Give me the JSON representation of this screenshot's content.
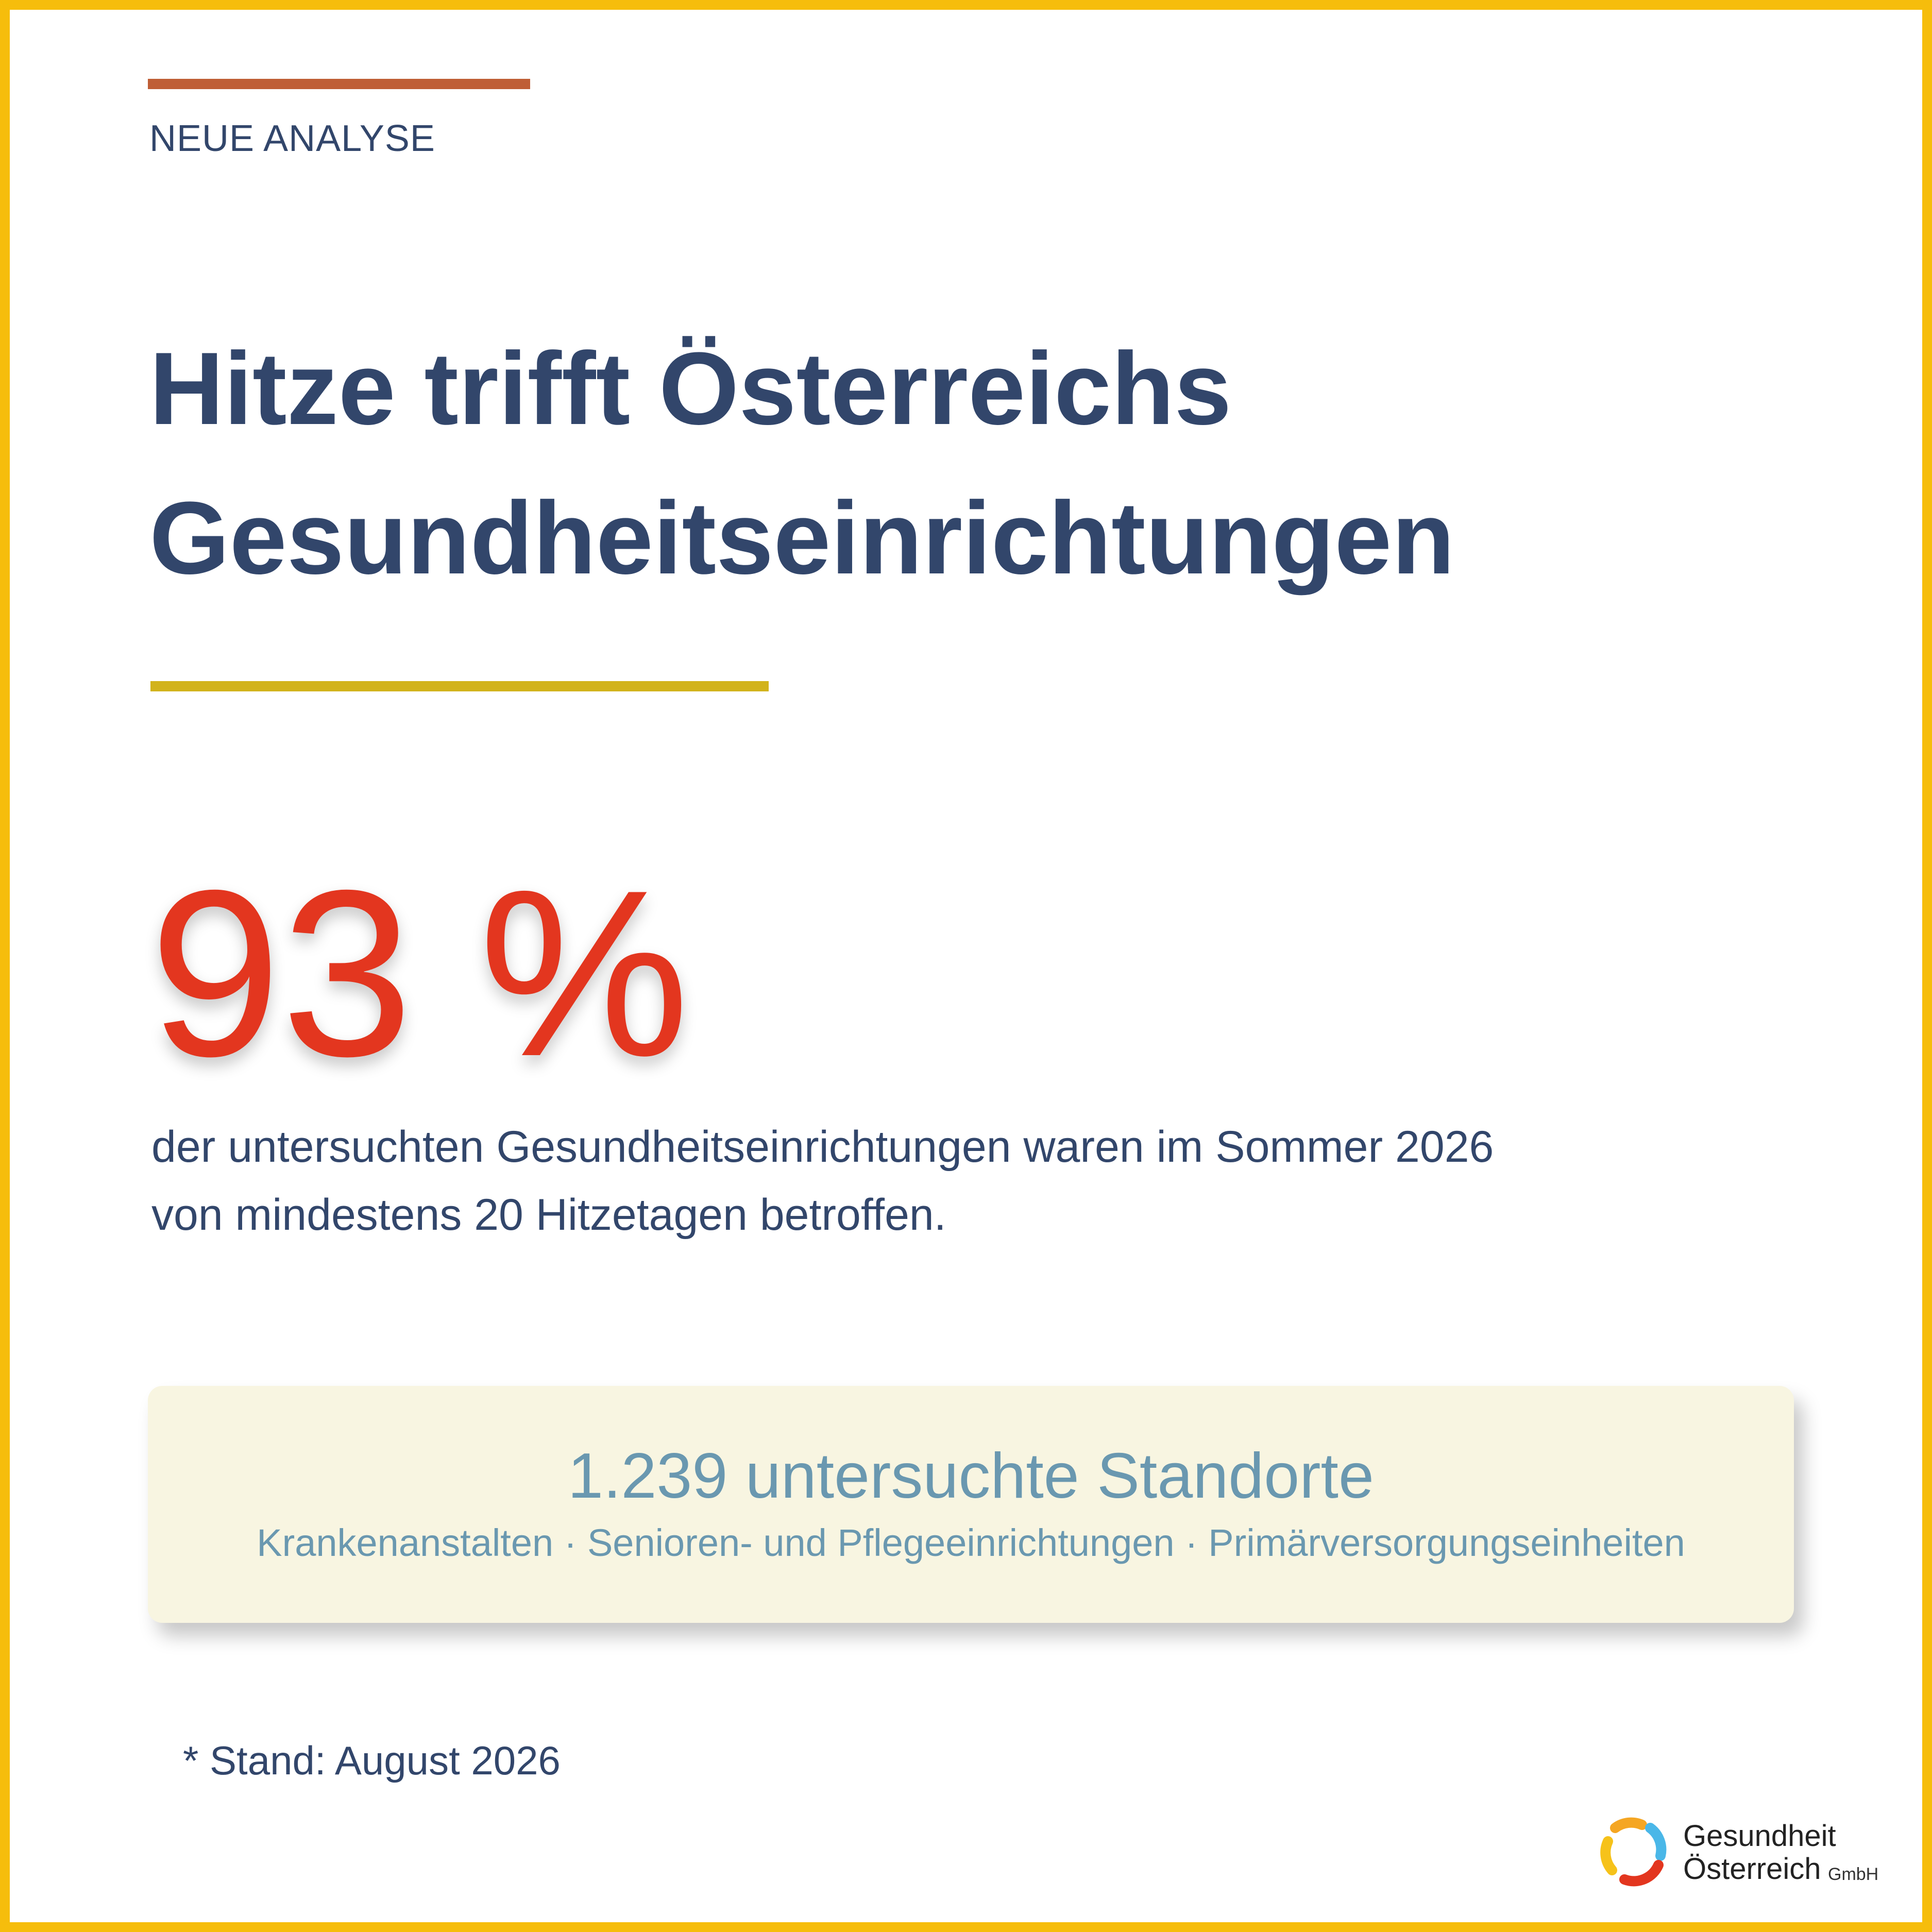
{
  "kicker": "NEUE ANALYSE",
  "title": {
    "line1": "Hitze trifft Österreichs",
    "line2": "Gesundheitseinrichtungen"
  },
  "stat": {
    "value": "93 %",
    "desc_line1": "der untersuchten Gesundheitseinrichtungen waren im Sommer 2026",
    "desc_line2": "von mindestens 20 Hitzetagen betroffen."
  },
  "card": {
    "headline": "1.239 untersuchte Standorte",
    "categories": "Krankenanstalten · Senioren- und Pflegeeinrichtungen · Primärversorgungseinheiten"
  },
  "footnote": "* Stand: August 2026",
  "logo": {
    "line1": "Gesundheit",
    "line2": "Österreich",
    "suffix": "GmbH"
  },
  "colors": {
    "frame": "#f6bd0c",
    "title": "#32466b",
    "stat": "#e3361f",
    "top_rule": "#bf5e36",
    "mid_rule": "#d2b31c",
    "card_bg": "#f8f5e1",
    "card_text": "#6a98b0"
  }
}
